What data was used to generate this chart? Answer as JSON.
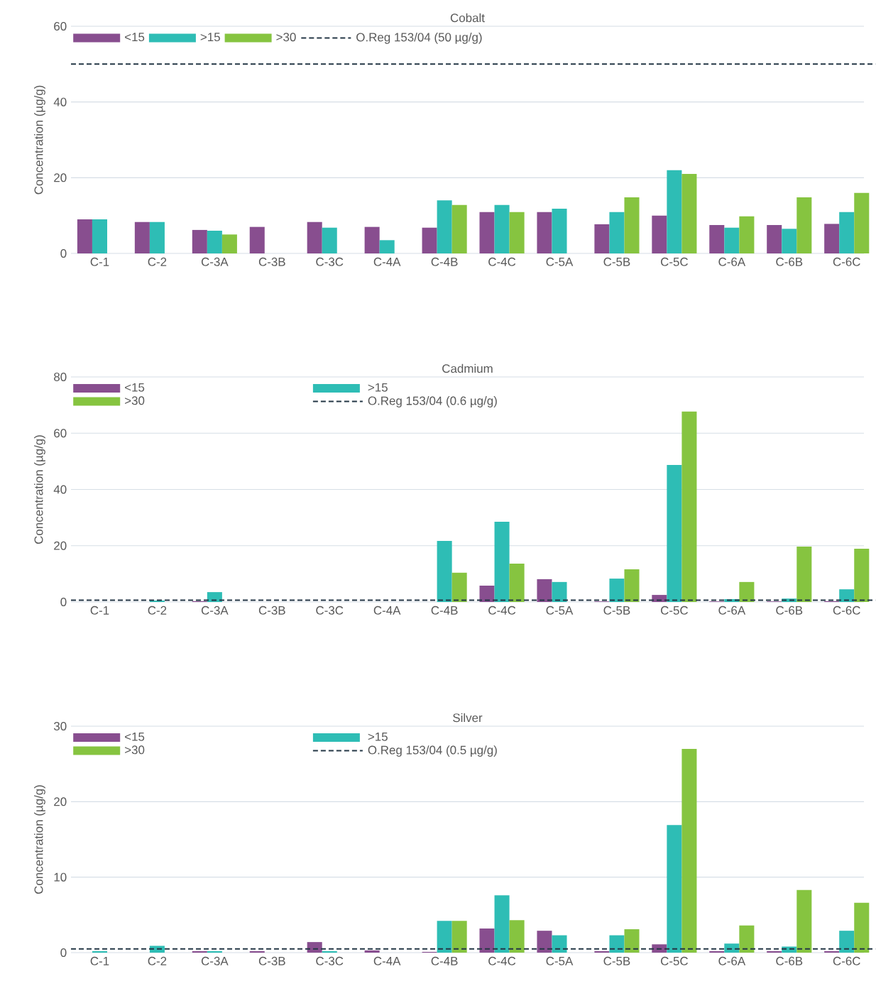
{
  "chart_data": [
    {
      "type": "bar",
      "title": "Cobalt",
      "ylabel": "Concentration (µg/g)",
      "categories": [
        "C-1",
        "C-2",
        "C-3A",
        "C-3B",
        "C-3C",
        "C-4A",
        "C-4B",
        "C-4C",
        "C-5A",
        "C-5B",
        "C-5C",
        "C-6A",
        "C-6B",
        "C-6C"
      ],
      "series": [
        {
          "name": "<15",
          "color": "#884e8f",
          "values": [
            9,
            8.3,
            6.2,
            7,
            8.3,
            7,
            6.8,
            10.9,
            10.9,
            7.7,
            10,
            7.5,
            7.5,
            7.8
          ]
        },
        {
          "name": ">15",
          "color": "#2ebdb5",
          "values": [
            9,
            8.3,
            6,
            null,
            6.8,
            3.5,
            14,
            12.8,
            11.8,
            10.9,
            22,
            6.8,
            6.5,
            10.9
          ]
        },
        {
          "name": ">30",
          "color": "#86c440",
          "values": [
            null,
            null,
            5,
            null,
            null,
            null,
            12.8,
            10.9,
            null,
            14.8,
            21,
            9.8,
            14.8,
            16
          ]
        }
      ],
      "ylim": [
        0,
        60
      ],
      "yticks": [
        0,
        20,
        40,
        60
      ],
      "grid": "y",
      "legend": "top left",
      "ref_lines": [
        {
          "axis": "y",
          "value": 50,
          "label": "O.Reg 153/04 (50 µg/g)",
          "color": "#243746",
          "line_style": "dashed"
        }
      ]
    },
    {
      "type": "bar",
      "title": "Cadmium",
      "ylabel": "Concentration (µg/g)",
      "categories": [
        "C-1",
        "C-2",
        "C-3A",
        "C-3B",
        "C-3C",
        "C-4A",
        "C-4B",
        "C-4C",
        "C-5A",
        "C-5B",
        "C-5C",
        "C-6A",
        "C-6B",
        "C-6C"
      ],
      "series": [
        {
          "name": "<15",
          "color": "#884e8f",
          "values": [
            null,
            null,
            0.3,
            null,
            null,
            null,
            null,
            5.8,
            8.1,
            0.2,
            2.5,
            0.2,
            0.2,
            0.3
          ]
        },
        {
          "name": ">15",
          "color": "#2ebdb5",
          "values": [
            null,
            0.5,
            3.5,
            null,
            null,
            null,
            21.7,
            28.5,
            7.1,
            8.3,
            48.7,
            1,
            1.2,
            4.5
          ]
        },
        {
          "name": ">30",
          "color": "#86c440",
          "values": [
            null,
            null,
            null,
            null,
            null,
            null,
            10.4,
            13.6,
            null,
            11.6,
            67.7,
            7.1,
            19.7,
            18.9
          ]
        }
      ],
      "ylim": [
        0,
        80
      ],
      "yticks": [
        0,
        20,
        40,
        60,
        80
      ],
      "grid": "y",
      "legend": "top left",
      "ref_lines": [
        {
          "axis": "y",
          "value": 0.6,
          "label": "O.Reg 153/04 (0.6 µg/g)",
          "color": "#243746",
          "line_style": "dashed"
        }
      ]
    },
    {
      "type": "bar",
      "title": "Silver",
      "ylabel": "Concentration (µg/g)",
      "categories": [
        "C-1",
        "C-2",
        "C-3A",
        "C-3B",
        "C-3C",
        "C-4A",
        "C-4B",
        "C-4C",
        "C-5A",
        "C-5B",
        "C-5C",
        "C-6A",
        "C-6B",
        "C-6C"
      ],
      "series": [
        {
          "name": "<15",
          "color": "#884e8f",
          "values": [
            null,
            null,
            0.2,
            0.2,
            1.4,
            0.3,
            0.1,
            3.2,
            2.9,
            0.2,
            1.1,
            0.2,
            0.2,
            0.2
          ]
        },
        {
          "name": ">15",
          "color": "#2ebdb5",
          "values": [
            0.2,
            0.9,
            0.2,
            null,
            0.2,
            null,
            4.2,
            7.6,
            2.3,
            2.3,
            16.9,
            1.2,
            0.8,
            2.9
          ]
        },
        {
          "name": ">30",
          "color": "#86c440",
          "values": [
            null,
            null,
            null,
            null,
            null,
            null,
            4.2,
            4.3,
            null,
            3.1,
            27,
            3.6,
            8.3,
            6.6
          ]
        }
      ],
      "ylim": [
        0,
        30
      ],
      "yticks": [
        0,
        10,
        20,
        30
      ],
      "grid": "y",
      "legend": "top left",
      "ref_lines": [
        {
          "axis": "y",
          "value": 0.5,
          "label": "O.Reg 153/04 (0.5 µg/g)",
          "color": "#243746",
          "line_style": "dashed"
        }
      ]
    }
  ]
}
